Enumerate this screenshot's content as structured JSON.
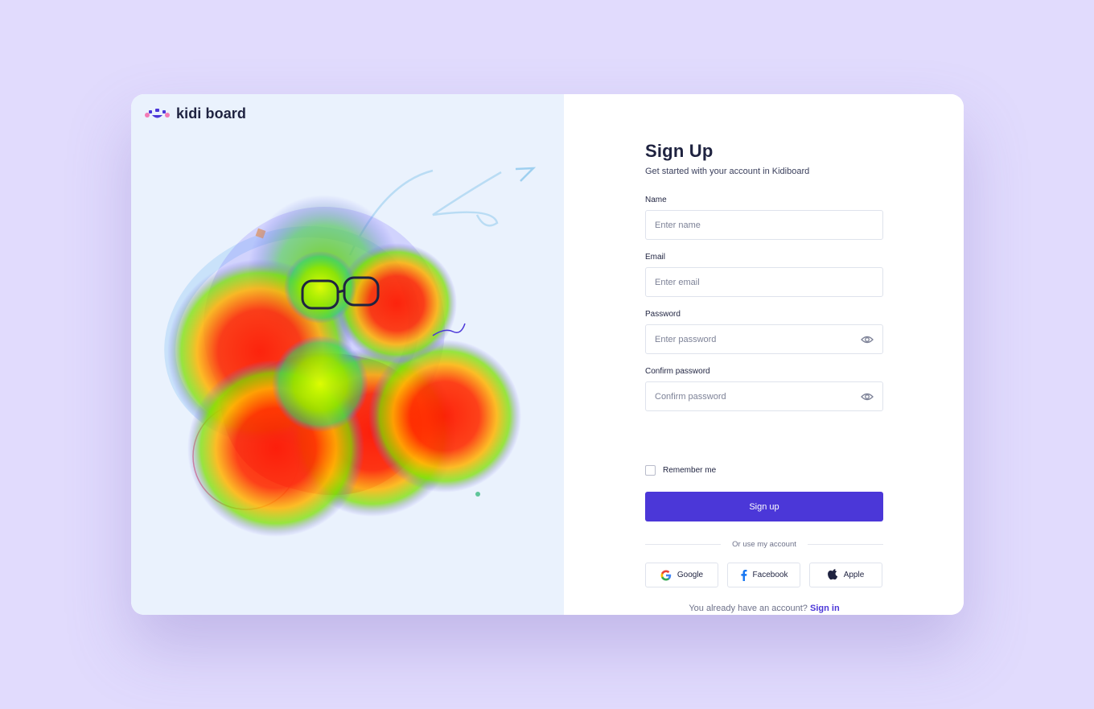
{
  "brand": {
    "name": "kidi board"
  },
  "signup": {
    "title": "Sign Up",
    "subtitle": "Get started with your account in Kidiboard",
    "fields": {
      "name": {
        "label": "Name",
        "placeholder": "Enter name"
      },
      "email": {
        "label": "Email",
        "placeholder": "Enter email"
      },
      "password": {
        "label": "Password",
        "placeholder": "Enter password"
      },
      "confirm": {
        "label": "Confirm password",
        "placeholder": "Confirm password"
      }
    },
    "remember_label": "Remember me",
    "submit_label": "Sign up",
    "divider_label": "Or use my account",
    "social": {
      "google": "Google",
      "facebook": "Facebook",
      "apple": "Apple"
    },
    "have_account": "You already have an account?",
    "signin_link": "Sign in"
  },
  "colors": {
    "page_bg": "#e1dbfd",
    "panel_bg": "#eaf2fd",
    "accent": "#4b37d8",
    "text": "#1f2340",
    "muted": "#7d8297"
  },
  "icons": {
    "logo": "kidi-face-logo",
    "eye": "eye-icon",
    "google": "google-icon",
    "facebook": "facebook-icon",
    "apple": "apple-icon"
  }
}
